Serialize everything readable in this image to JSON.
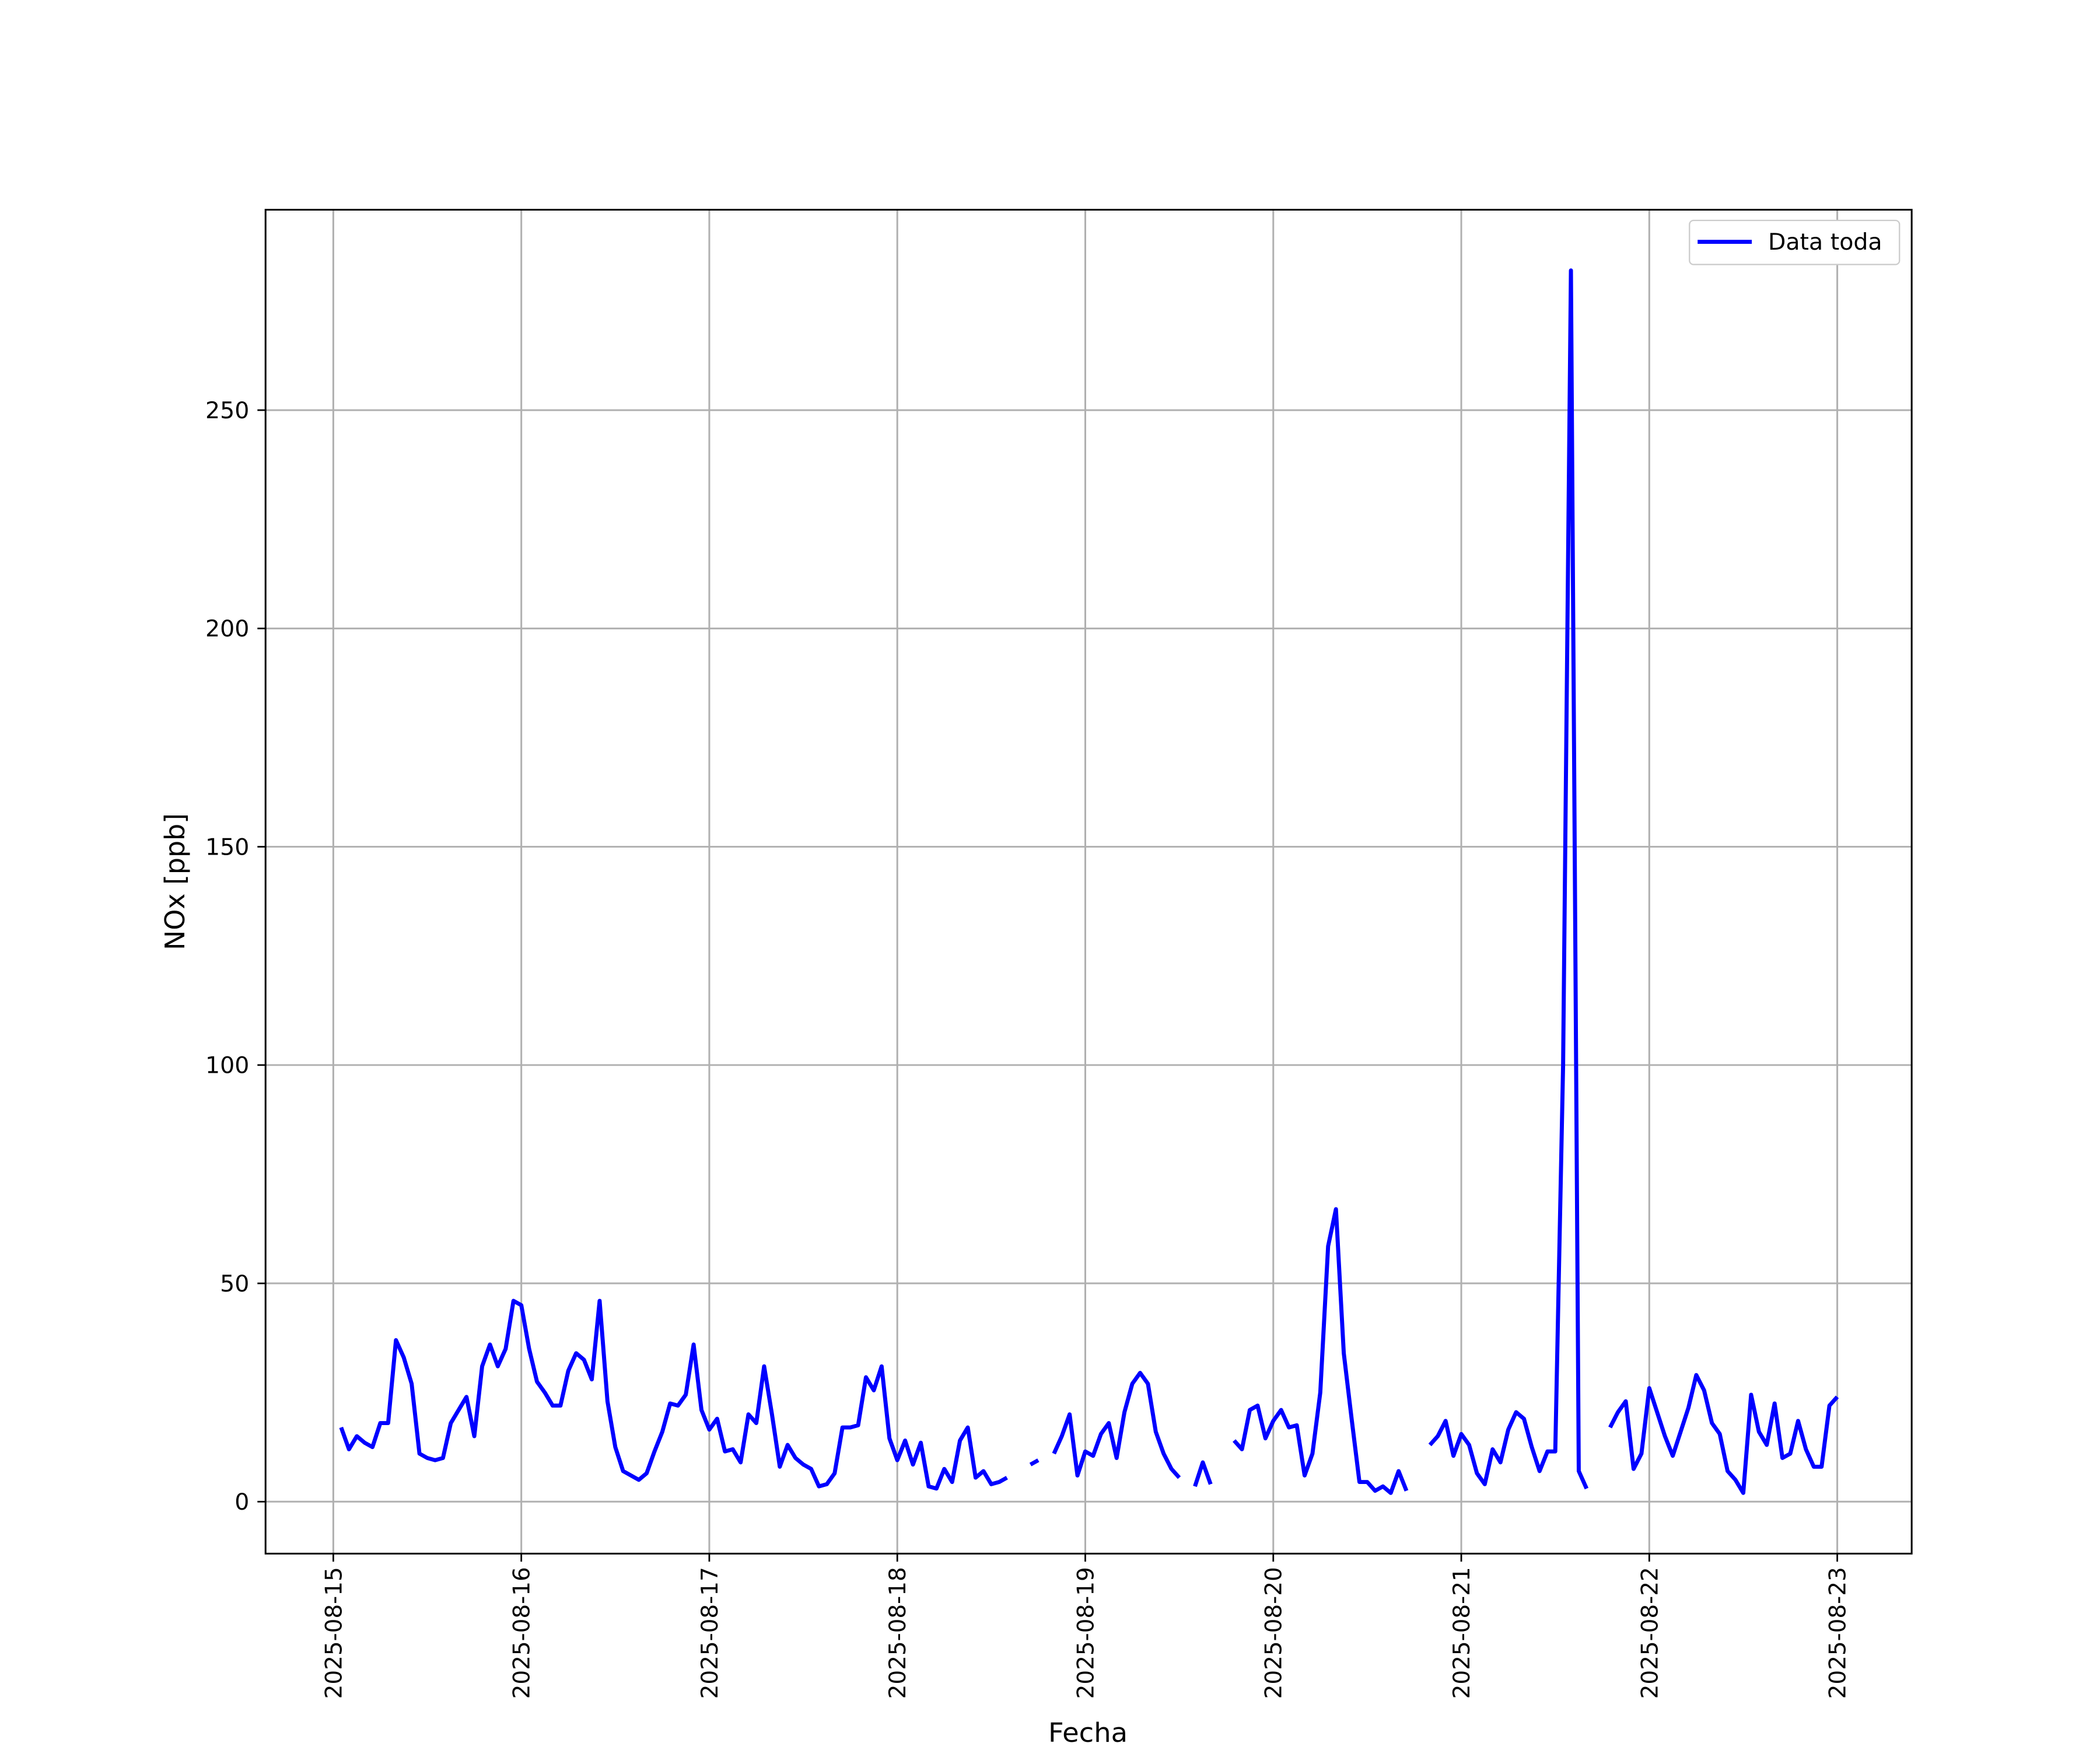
{
  "chart_data": {
    "type": "line",
    "ylabel": "NOx [ppb]",
    "xlabel": "Fecha",
    "legend": "upper right",
    "grid": true,
    "x": [
      "2025-08-15T01:00",
      "2025-08-15T02:00",
      "2025-08-15T03:00",
      "2025-08-15T04:00",
      "2025-08-15T05:00",
      "2025-08-15T06:00",
      "2025-08-15T07:00",
      "2025-08-15T08:00",
      "2025-08-15T09:00",
      "2025-08-15T10:00",
      "2025-08-15T11:00",
      "2025-08-15T12:00",
      "2025-08-15T13:00",
      "2025-08-15T14:00",
      "2025-08-15T15:00",
      "2025-08-15T16:00",
      "2025-08-15T17:00",
      "2025-08-15T18:00",
      "2025-08-15T19:00",
      "2025-08-15T20:00",
      "2025-08-15T21:00",
      "2025-08-15T22:00",
      "2025-08-15T23:00",
      "2025-08-16T00:00",
      "2025-08-16T01:00",
      "2025-08-16T02:00",
      "2025-08-16T03:00",
      "2025-08-16T04:00",
      "2025-08-16T05:00",
      "2025-08-16T06:00",
      "2025-08-16T07:00",
      "2025-08-16T08:00",
      "2025-08-16T09:00",
      "2025-08-16T10:00",
      "2025-08-16T11:00",
      "2025-08-16T12:00",
      "2025-08-16T13:00",
      "2025-08-16T14:00",
      "2025-08-16T15:00",
      "2025-08-16T16:00",
      "2025-08-16T17:00",
      "2025-08-16T18:00",
      "2025-08-16T19:00",
      "2025-08-16T20:00",
      "2025-08-16T21:00",
      "2025-08-16T22:00",
      "2025-08-16T23:00",
      "2025-08-17T00:00",
      "2025-08-17T01:00",
      "2025-08-17T02:00",
      "2025-08-17T03:00",
      "2025-08-17T04:00",
      "2025-08-17T05:00",
      "2025-08-17T06:00",
      "2025-08-17T07:00",
      "2025-08-17T08:00",
      "2025-08-17T09:00",
      "2025-08-17T10:00",
      "2025-08-17T11:00",
      "2025-08-17T12:00",
      "2025-08-17T13:00",
      "2025-08-17T14:00",
      "2025-08-17T15:00",
      "2025-08-17T16:00",
      "2025-08-17T17:00",
      "2025-08-17T18:00",
      "2025-08-17T19:00",
      "2025-08-17T20:00",
      "2025-08-17T21:00",
      "2025-08-17T22:00",
      "2025-08-17T23:00",
      "2025-08-18T00:00",
      "2025-08-18T01:00",
      "2025-08-18T02:00",
      "2025-08-18T03:00",
      "2025-08-18T04:00",
      "2025-08-18T05:00",
      "2025-08-18T06:00",
      "2025-08-18T07:00",
      "2025-08-18T08:00",
      "2025-08-18T09:00",
      "2025-08-18T10:00",
      "2025-08-18T11:00",
      "2025-08-18T12:00",
      "2025-08-18T13:00",
      "2025-08-18T14:00",
      "2025-08-18T15:00",
      "2025-08-18T16:00",
      "2025-08-18T17:00",
      "2025-08-18T18:00",
      "2025-08-18T19:00",
      "2025-08-18T20:00",
      "2025-08-18T21:00",
      "2025-08-18T22:00",
      "2025-08-18T23:00",
      "2025-08-19T00:00",
      "2025-08-19T01:00",
      "2025-08-19T02:00",
      "2025-08-19T03:00",
      "2025-08-19T04:00",
      "2025-08-19T05:00",
      "2025-08-19T06:00",
      "2025-08-19T07:00",
      "2025-08-19T08:00",
      "2025-08-19T09:00",
      "2025-08-19T10:00",
      "2025-08-19T11:00",
      "2025-08-19T12:00",
      "2025-08-19T13:00",
      "2025-08-19T14:00",
      "2025-08-19T15:00",
      "2025-08-19T16:00",
      "2025-08-19T17:00",
      "2025-08-19T18:00",
      "2025-08-19T19:00",
      "2025-08-19T20:00",
      "2025-08-19T21:00",
      "2025-08-19T22:00",
      "2025-08-19T23:00",
      "2025-08-20T00:00",
      "2025-08-20T01:00",
      "2025-08-20T02:00",
      "2025-08-20T03:00",
      "2025-08-20T04:00",
      "2025-08-20T05:00",
      "2025-08-20T06:00",
      "2025-08-20T07:00",
      "2025-08-20T08:00",
      "2025-08-20T09:00",
      "2025-08-20T10:00",
      "2025-08-20T11:00",
      "2025-08-20T12:00",
      "2025-08-20T13:00",
      "2025-08-20T14:00",
      "2025-08-20T15:00",
      "2025-08-20T16:00",
      "2025-08-20T17:00",
      "2025-08-20T18:00",
      "2025-08-20T19:00",
      "2025-08-20T20:00",
      "2025-08-20T21:00",
      "2025-08-20T22:00",
      "2025-08-20T23:00",
      "2025-08-21T00:00",
      "2025-08-21T01:00",
      "2025-08-21T02:00",
      "2025-08-21T03:00",
      "2025-08-21T04:00",
      "2025-08-21T05:00",
      "2025-08-21T06:00",
      "2025-08-21T07:00",
      "2025-08-21T08:00",
      "2025-08-21T09:00",
      "2025-08-21T10:00",
      "2025-08-21T11:00",
      "2025-08-21T12:00",
      "2025-08-21T13:00",
      "2025-08-21T14:00",
      "2025-08-21T15:00",
      "2025-08-21T16:00",
      "2025-08-21T17:00",
      "2025-08-21T18:00",
      "2025-08-21T19:00",
      "2025-08-21T20:00",
      "2025-08-21T21:00",
      "2025-08-21T22:00",
      "2025-08-21T23:00",
      "2025-08-22T00:00",
      "2025-08-22T01:00",
      "2025-08-22T02:00",
      "2025-08-22T03:00",
      "2025-08-22T04:00",
      "2025-08-22T05:00",
      "2025-08-22T06:00",
      "2025-08-22T07:00",
      "2025-08-22T08:00",
      "2025-08-22T09:00",
      "2025-08-22T10:00",
      "2025-08-22T11:00",
      "2025-08-22T12:00",
      "2025-08-22T13:00",
      "2025-08-22T14:00",
      "2025-08-22T15:00",
      "2025-08-22T16:00",
      "2025-08-22T17:00",
      "2025-08-22T18:00",
      "2025-08-22T19:00",
      "2025-08-22T20:00",
      "2025-08-22T21:00",
      "2025-08-22T22:00",
      "2025-08-22T23:00",
      "2025-08-23T00:00"
    ],
    "series": [
      {
        "name": "Data toda",
        "color": "#0000ff",
        "values": [
          17,
          12,
          15,
          13.5,
          12.5,
          18,
          18,
          37,
          33,
          27,
          11,
          10,
          9.5,
          10,
          18,
          21,
          24,
          15,
          31,
          36,
          31,
          35,
          46,
          45,
          35,
          27.5,
          25,
          22,
          22,
          30,
          34,
          32.5,
          28,
          46,
          23,
          12.5,
          7,
          6,
          5,
          6.5,
          11.5,
          16,
          22.5,
          22,
          24.5,
          36,
          21,
          16.5,
          19,
          11.5,
          12,
          9,
          20,
          18,
          31,
          20,
          8,
          13,
          10,
          8.5,
          7.5,
          3.5,
          4,
          6.5,
          17,
          17,
          17.5,
          28.5,
          25.5,
          31,
          14.5,
          9.5,
          14,
          8.5,
          13.5,
          3.5,
          3,
          7.5,
          4.5,
          14,
          17,
          5.5,
          7,
          4,
          4.5,
          5.5,
          null,
          null,
          8.5,
          9.5,
          null,
          11,
          15,
          20,
          6,
          11.5,
          10.5,
          15.5,
          18,
          10,
          20.5,
          27,
          29.5,
          27,
          16,
          11,
          7.5,
          5.5,
          null,
          3.5,
          9,
          4,
          null,
          null,
          14,
          12,
          21,
          22,
          14.5,
          18.5,
          21,
          17,
          17.5,
          6,
          11,
          25,
          58.5,
          67,
          34,
          19,
          4.5,
          4.5,
          2.5,
          3.5,
          2,
          7,
          2.5,
          null,
          null,
          13,
          15,
          18.5,
          10.5,
          15.5,
          13,
          6.5,
          4,
          12,
          9,
          16.5,
          20.5,
          19,
          12.5,
          7,
          11.5,
          11.5,
          100,
          282,
          7,
          3,
          null,
          null,
          17,
          20.5,
          23,
          7.5,
          11,
          26,
          20.5,
          15,
          10.5,
          16,
          21.5,
          29,
          25.5,
          18,
          15.5,
          7,
          5,
          2,
          24.5,
          16,
          13,
          22.5,
          10,
          11,
          18.5,
          12,
          8,
          8,
          22,
          24
        ]
      }
    ],
    "xlim": [
      "2025-08-14T15:21",
      "2025-08-23T09:30"
    ],
    "xticks": [
      "2025-08-15",
      "2025-08-16",
      "2025-08-17",
      "2025-08-18",
      "2025-08-19",
      "2025-08-20",
      "2025-08-21",
      "2025-08-22",
      "2025-08-23"
    ],
    "ylim": [
      -11.9,
      295.9
    ],
    "yticks": [
      0,
      50,
      100,
      150,
      200,
      250
    ]
  }
}
